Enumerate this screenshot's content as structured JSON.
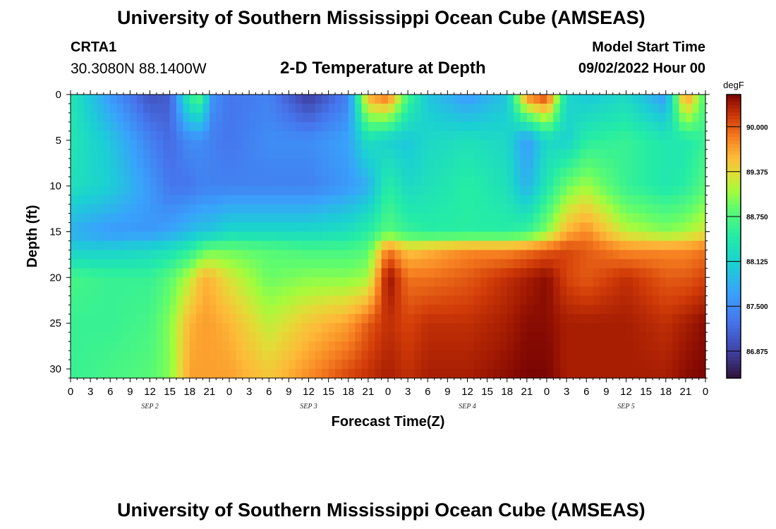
{
  "page": {
    "title": "University of Southern Mississippi Ocean Cube (AMSEAS)",
    "station": "CRTA1",
    "coords": "30.3080N  88.1400W",
    "subtitle": "2-D Temperature at Depth",
    "model_start_label": "Model Start Time",
    "model_start_value": "09/02/2022 Hour 00",
    "footer_title": "University of Southern Mississippi Ocean Cube (AMSEAS)"
  },
  "chart_data": {
    "type": "heatmap",
    "title": "2-D Temperature at Depth",
    "xlabel": "Forecast Time(Z)",
    "ylabel": "Depth (ft)",
    "x_tick_labels": [
      "0",
      "3",
      "6",
      "9",
      "12",
      "15",
      "18",
      "21",
      "0",
      "3",
      "6",
      "9",
      "12",
      "15",
      "18",
      "21",
      "0",
      "3",
      "6",
      "9",
      "12",
      "15",
      "18",
      "21",
      "0",
      "3",
      "6",
      "9",
      "12",
      "15",
      "18",
      "21",
      "0"
    ],
    "x_range_hours": [
      0,
      96
    ],
    "day_labels": [
      {
        "label": "SEP 2",
        "hour": 12
      },
      {
        "label": "SEP 3",
        "hour": 36
      },
      {
        "label": "SEP 4",
        "hour": 60
      },
      {
        "label": "SEP 5",
        "hour": 84
      }
    ],
    "y_range_ft": [
      0,
      31
    ],
    "y_ticks": [
      0,
      5,
      10,
      15,
      20,
      25,
      30
    ],
    "colorbar": {
      "unit": "degF",
      "vmin": 86.5,
      "vmax": 90.45,
      "ticks": [
        "90.000",
        "89.375",
        "88.750",
        "88.125",
        "87.500",
        "86.875"
      ],
      "tick_values": [
        90.0,
        89.375,
        88.75,
        88.125,
        87.5,
        86.875
      ]
    },
    "depths_ft": [
      0,
      5,
      10,
      15,
      17,
      20,
      25,
      31
    ],
    "hours": [
      0,
      6,
      12,
      15,
      18,
      20,
      21,
      24,
      30,
      36,
      42,
      45,
      48,
      51,
      54,
      60,
      66,
      69,
      72,
      75,
      78,
      84,
      90,
      93,
      96
    ],
    "temperature_degF": [
      [
        88.4,
        87.6,
        87.0,
        87.1,
        88.6,
        88.8,
        87.6,
        87.3,
        87.4,
        86.8,
        87.4,
        89.7,
        90.0,
        88.7,
        88.0,
        87.6,
        88.0,
        89.9,
        90.2,
        88.2,
        88.0,
        88.2,
        87.6,
        89.9,
        88.7
      ],
      [
        88.4,
        88.0,
        87.4,
        87.2,
        87.5,
        87.5,
        87.4,
        87.3,
        87.5,
        87.5,
        87.7,
        88.3,
        88.1,
        88.0,
        88.2,
        88.3,
        88.2,
        87.6,
        88.2,
        88.1,
        88.5,
        88.6,
        88.4,
        88.4,
        88.6
      ],
      [
        88.3,
        88.1,
        87.6,
        87.3,
        87.3,
        87.4,
        87.4,
        87.4,
        87.4,
        87.4,
        87.6,
        87.8,
        88.5,
        88.2,
        88.3,
        88.5,
        88.3,
        87.8,
        88.4,
        88.9,
        89.1,
        88.6,
        88.4,
        88.5,
        88.8
      ],
      [
        87.8,
        87.6,
        87.6,
        87.7,
        87.9,
        88.0,
        88.0,
        88.2,
        88.2,
        88.2,
        88.3,
        88.5,
        88.8,
        88.6,
        88.5,
        88.5,
        88.5,
        88.6,
        89.0,
        89.6,
        89.8,
        89.2,
        89.0,
        89.1,
        89.3
      ],
      [
        88.1,
        88.1,
        88.2,
        88.3,
        88.5,
        88.8,
        88.9,
        88.9,
        88.8,
        88.7,
        88.7,
        88.8,
        89.9,
        89.5,
        89.6,
        89.8,
        89.8,
        89.9,
        90.0,
        90.1,
        90.0,
        89.8,
        89.8,
        89.8,
        89.9
      ],
      [
        88.7,
        88.6,
        88.6,
        88.8,
        89.2,
        89.6,
        89.6,
        89.3,
        88.9,
        89.0,
        89.0,
        89.1,
        90.4,
        89.9,
        89.9,
        90.0,
        90.2,
        90.3,
        90.4,
        90.1,
        90.0,
        90.2,
        90.0,
        90.0,
        90.1
      ],
      [
        88.6,
        88.6,
        88.7,
        89.0,
        89.6,
        89.7,
        89.7,
        89.6,
        89.2,
        89.5,
        89.7,
        90.0,
        90.2,
        90.1,
        90.2,
        90.2,
        90.3,
        90.4,
        90.4,
        90.3,
        90.3,
        90.3,
        90.2,
        90.3,
        90.4
      ],
      [
        88.6,
        88.7,
        88.8,
        89.0,
        89.7,
        89.7,
        89.7,
        89.7,
        89.5,
        89.8,
        90.1,
        90.2,
        90.3,
        90.2,
        90.3,
        90.3,
        90.4,
        90.45,
        90.45,
        90.3,
        90.3,
        90.3,
        90.3,
        90.4,
        90.45
      ]
    ]
  }
}
